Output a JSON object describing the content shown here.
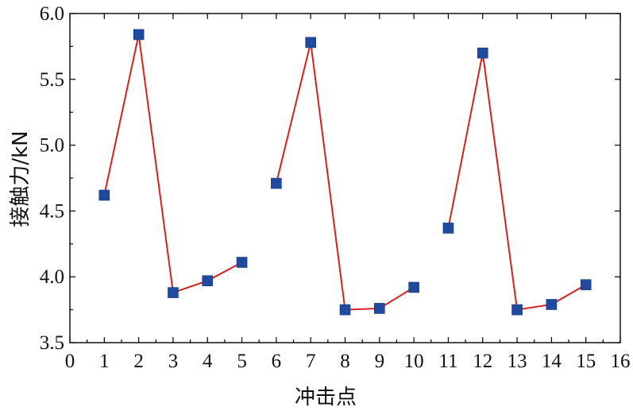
{
  "chart_data": {
    "type": "line",
    "xlabel": "冲击点",
    "ylabel": "接触力/kN",
    "xlim": [
      0,
      16
    ],
    "ylim": [
      3.5,
      6.0
    ],
    "x_ticks": [
      0,
      1,
      2,
      3,
      4,
      5,
      6,
      7,
      8,
      9,
      10,
      11,
      12,
      13,
      14,
      15,
      16
    ],
    "y_ticks": [
      "3.5",
      "4.0",
      "4.5",
      "5.0",
      "5.5",
      "6.0"
    ],
    "grid": false,
    "line_color": "#d42020",
    "marker_color": "#1f4aa0",
    "segments": [
      {
        "x": [
          1,
          2,
          3,
          4,
          5
        ],
        "y": [
          4.62,
          5.84,
          3.88,
          3.97,
          4.11
        ]
      },
      {
        "x": [
          6,
          7,
          8,
          9,
          10
        ],
        "y": [
          4.71,
          5.78,
          3.75,
          3.76,
          3.92
        ]
      },
      {
        "x": [
          11,
          12,
          13,
          14,
          15
        ],
        "y": [
          4.37,
          5.7,
          3.75,
          3.79,
          3.94
        ]
      }
    ]
  }
}
